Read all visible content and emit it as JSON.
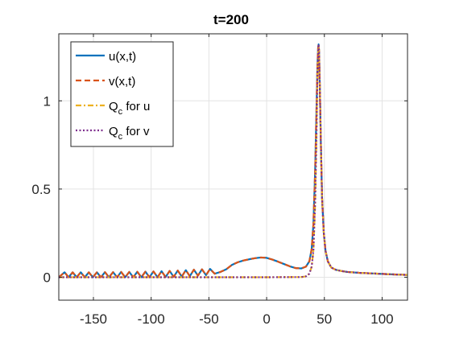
{
  "chart_data": {
    "type": "line",
    "title": "t=200",
    "xlabel": "",
    "ylabel": "",
    "xlim": [
      -180,
      122
    ],
    "ylim": [
      -0.13,
      1.38
    ],
    "xticks": [
      -150,
      -100,
      -50,
      0,
      50,
      100
    ],
    "xtick_labels": [
      "-150",
      "-100",
      "-50",
      "0",
      "50",
      "100"
    ],
    "yticks": [
      0,
      0.5,
      1
    ],
    "ytick_labels": [
      "0",
      "0.5",
      "1"
    ],
    "grid": true,
    "legend_position": "top-left",
    "series": [
      {
        "name": "u(x,t)",
        "legend_main": "u(x,t)",
        "legend_sub": "",
        "legend_tail": "",
        "color": "#0072BD",
        "style": "solid",
        "x": [
          -180,
          -175,
          -171.5,
          -168,
          -164.5,
          -161,
          -157.5,
          -154,
          -150.5,
          -147,
          -143.5,
          -140,
          -136.5,
          -133,
          -129.5,
          -126,
          -122.5,
          -119,
          -115.5,
          -112,
          -108.5,
          -105,
          -101.5,
          -98,
          -94.5,
          -91,
          -87.5,
          -84,
          -80.5,
          -77,
          -73.5,
          -70,
          -66.5,
          -63,
          -59.5,
          -56,
          -52.5,
          -49,
          -45,
          -40,
          -35,
          -30,
          -25,
          -20,
          -15,
          -10,
          -5,
          0,
          5,
          10,
          15,
          20,
          25,
          30,
          34,
          37,
          39,
          40.5,
          42,
          43,
          44,
          44.6,
          45,
          45.4,
          46,
          47,
          48,
          49.5,
          51,
          53,
          56,
          60,
          65,
          70,
          80,
          90,
          100,
          110,
          122
        ],
        "y": [
          0.0,
          0.028,
          0.0,
          0.028,
          0.0,
          0.028,
          0.0,
          0.028,
          0.0,
          0.028,
          0.0,
          0.029,
          0.0,
          0.029,
          0.0,
          0.03,
          0.0,
          0.03,
          0.0,
          0.031,
          0.0,
          0.032,
          0.0,
          0.033,
          0.0,
          0.034,
          0.001,
          0.036,
          0.002,
          0.038,
          0.004,
          0.04,
          0.006,
          0.043,
          0.009,
          0.045,
          0.012,
          0.047,
          0.02,
          0.03,
          0.045,
          0.07,
          0.085,
          0.095,
          0.102,
          0.108,
          0.112,
          0.11,
          0.1,
          0.088,
          0.075,
          0.062,
          0.052,
          0.05,
          0.06,
          0.09,
          0.16,
          0.3,
          0.6,
          0.9,
          1.2,
          1.3,
          1.32,
          1.28,
          1.1,
          0.75,
          0.45,
          0.25,
          0.15,
          0.09,
          0.055,
          0.042,
          0.035,
          0.03,
          0.025,
          0.022,
          0.019,
          0.016,
          0.013
        ]
      },
      {
        "name": "v(x,t)",
        "legend_main": "v(x,t)",
        "legend_sub": "",
        "legend_tail": "",
        "color": "#D95319",
        "style": "dashed",
        "x": [
          -180,
          -175,
          -171.5,
          -168,
          -164.5,
          -161,
          -157.5,
          -154,
          -150.5,
          -147,
          -143.5,
          -140,
          -136.5,
          -133,
          -129.5,
          -126,
          -122.5,
          -119,
          -115.5,
          -112,
          -108.5,
          -105,
          -101.5,
          -98,
          -94.5,
          -91,
          -87.5,
          -84,
          -80.5,
          -77,
          -73.5,
          -70,
          -66.5,
          -63,
          -59.5,
          -56,
          -52.5,
          -49,
          -45,
          -40,
          -35,
          -30,
          -25,
          -20,
          -15,
          -10,
          -5,
          0,
          5,
          10,
          15,
          20,
          25,
          30,
          34,
          37,
          39,
          40.5,
          42,
          43,
          44,
          44.6,
          45,
          45.4,
          46,
          47,
          48,
          49.5,
          51,
          53,
          56,
          60,
          65,
          70,
          80,
          90,
          100,
          110,
          122
        ],
        "y": [
          0.0,
          0.028,
          0.0,
          0.028,
          0.0,
          0.028,
          0.0,
          0.028,
          0.0,
          0.028,
          0.0,
          0.029,
          0.0,
          0.029,
          0.0,
          0.03,
          0.0,
          0.03,
          0.0,
          0.031,
          0.0,
          0.032,
          0.0,
          0.033,
          0.0,
          0.034,
          0.001,
          0.036,
          0.002,
          0.038,
          0.004,
          0.04,
          0.006,
          0.043,
          0.009,
          0.045,
          0.012,
          0.047,
          0.02,
          0.03,
          0.045,
          0.07,
          0.085,
          0.095,
          0.102,
          0.108,
          0.112,
          0.11,
          0.1,
          0.088,
          0.075,
          0.062,
          0.052,
          0.05,
          0.06,
          0.09,
          0.16,
          0.3,
          0.6,
          0.9,
          1.2,
          1.3,
          1.32,
          1.28,
          1.1,
          0.75,
          0.45,
          0.25,
          0.15,
          0.09,
          0.055,
          0.042,
          0.035,
          0.03,
          0.025,
          0.022,
          0.019,
          0.016,
          0.013
        ]
      },
      {
        "name": "Qc for u",
        "legend_main": "Q",
        "legend_sub": "c",
        "legend_tail": " for u",
        "color": "#EDB120",
        "style": "dashdot",
        "x": [
          -180,
          -100,
          0,
          30,
          34,
          37,
          39,
          40.5,
          42,
          43,
          44,
          44.6,
          45,
          45.4,
          46,
          47,
          48,
          49.5,
          51,
          53,
          56,
          60,
          65,
          70,
          80,
          90,
          100,
          110,
          122
        ],
        "y": [
          0.0,
          0.0,
          0.0,
          0.001,
          0.005,
          0.02,
          0.06,
          0.15,
          0.42,
          0.75,
          1.15,
          1.28,
          1.32,
          1.28,
          1.1,
          0.75,
          0.45,
          0.25,
          0.15,
          0.09,
          0.055,
          0.042,
          0.035,
          0.03,
          0.025,
          0.022,
          0.019,
          0.016,
          0.013
        ]
      },
      {
        "name": "Qc for v",
        "legend_main": "Q",
        "legend_sub": "c",
        "legend_tail": " for v",
        "color": "#7E2F8E",
        "style": "dotted",
        "x": [
          -180,
          -100,
          0,
          30,
          34,
          37,
          39,
          40.5,
          42,
          43,
          44,
          44.6,
          45,
          45.4,
          46,
          47,
          48,
          49.5,
          51,
          53,
          56,
          60,
          65,
          70,
          80,
          90,
          100,
          110,
          122
        ],
        "y": [
          0.0,
          0.0,
          0.0,
          0.001,
          0.005,
          0.02,
          0.06,
          0.15,
          0.42,
          0.75,
          1.15,
          1.28,
          1.32,
          1.28,
          1.1,
          0.75,
          0.45,
          0.25,
          0.15,
          0.09,
          0.055,
          0.042,
          0.035,
          0.03,
          0.025,
          0.022,
          0.019,
          0.016,
          0.013
        ]
      }
    ]
  }
}
